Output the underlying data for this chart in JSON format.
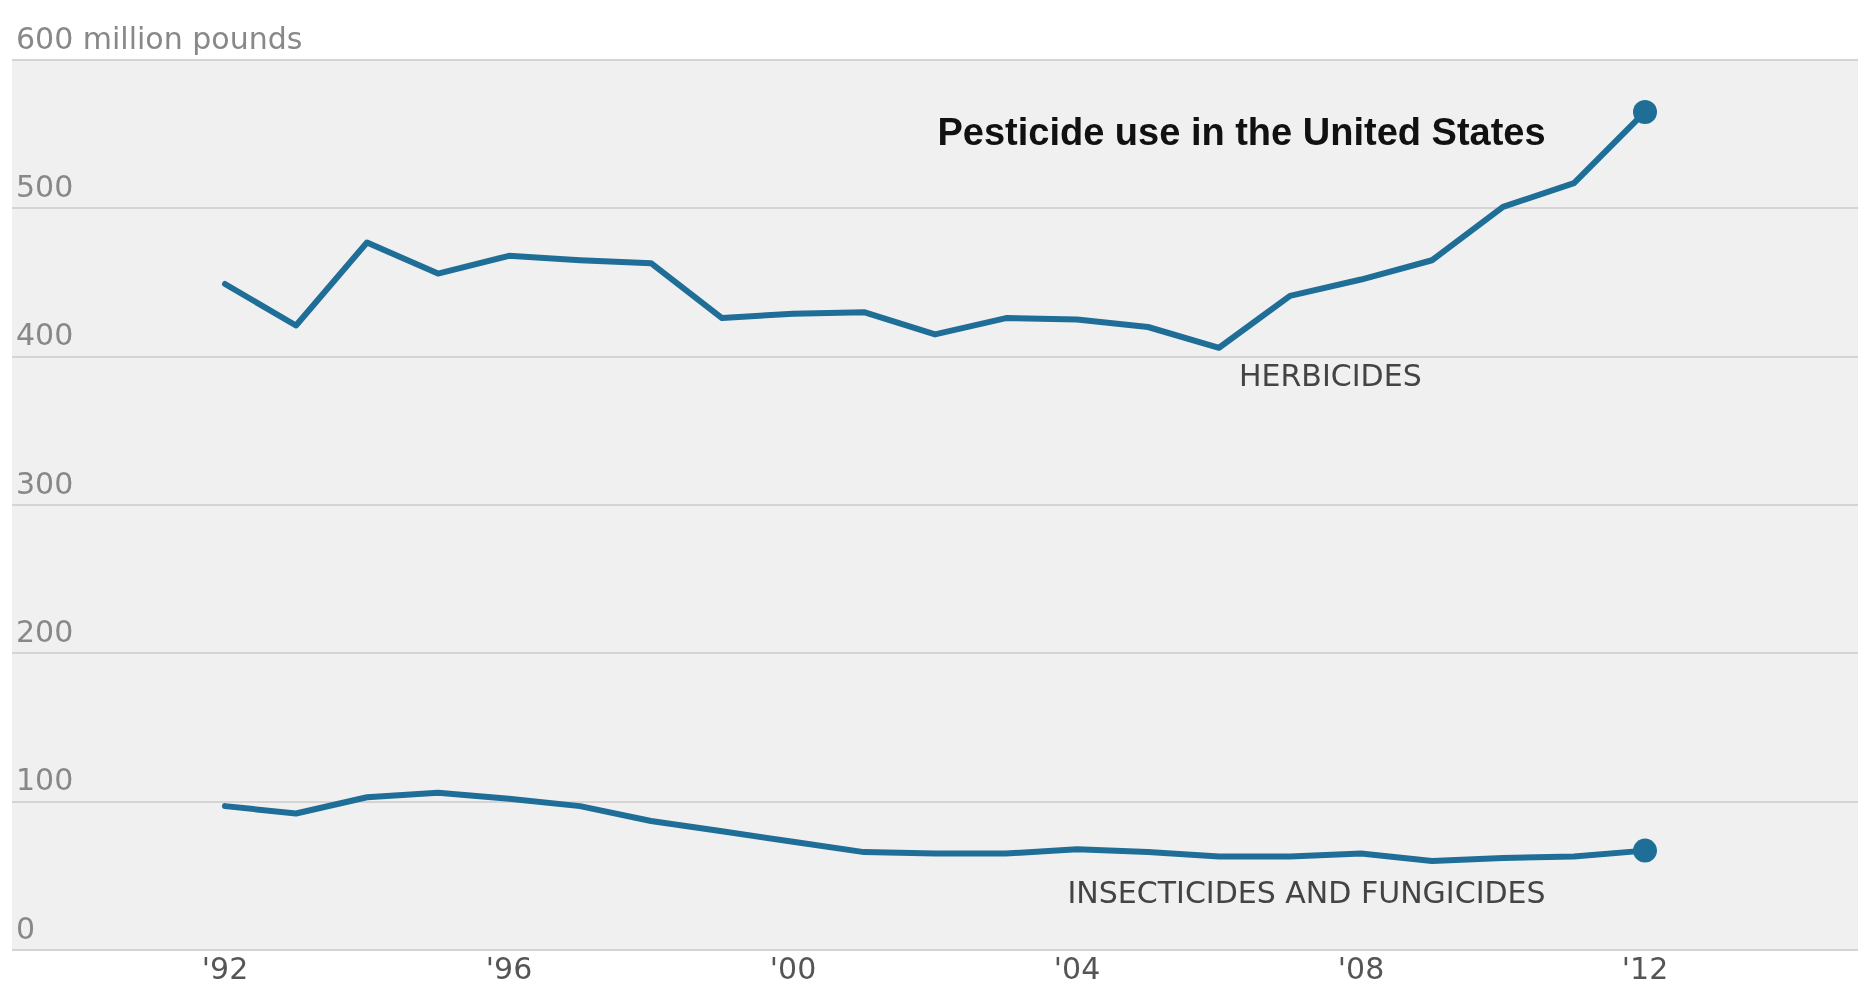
{
  "chart_data": {
    "type": "line",
    "title": "Pesticide use in the United States",
    "x": [
      1992,
      1993,
      1994,
      1995,
      1996,
      1997,
      1998,
      1999,
      2000,
      2001,
      2002,
      2003,
      2004,
      2005,
      2006,
      2007,
      2008,
      2009,
      2010,
      2011,
      2012
    ],
    "series": [
      {
        "name": "HERBICIDES",
        "color": "#1f6e97",
        "values": [
          449,
          421,
          477,
          456,
          468,
          465,
          463,
          426,
          429,
          430,
          415,
          426,
          425,
          420,
          406,
          441,
          452,
          465,
          501,
          517,
          565
        ]
      },
      {
        "name": "INSECTICIDES AND FUNGICIDES",
        "color": "#1f6e97",
        "values": [
          97,
          92,
          103,
          106,
          102,
          97,
          87,
          80,
          73,
          66,
          65,
          65,
          68,
          66,
          63,
          63,
          65,
          60,
          62,
          63,
          67
        ]
      }
    ],
    "xlim": [
      1989,
      2015
    ],
    "xticks": [
      {
        "value": 1992,
        "label": "'92"
      },
      {
        "value": 1996,
        "label": "'96"
      },
      {
        "value": 2000,
        "label": "'00"
      },
      {
        "value": 2004,
        "label": "'04"
      },
      {
        "value": 2008,
        "label": "'08"
      },
      {
        "value": 2012,
        "label": "'12"
      }
    ],
    "ylim": [
      0,
      600
    ],
    "yticks": [
      0,
      100,
      200,
      300,
      400,
      500,
      {
        "value": 600,
        "label": "600 million pounds"
      }
    ],
    "grid": "y",
    "legend": false
  }
}
